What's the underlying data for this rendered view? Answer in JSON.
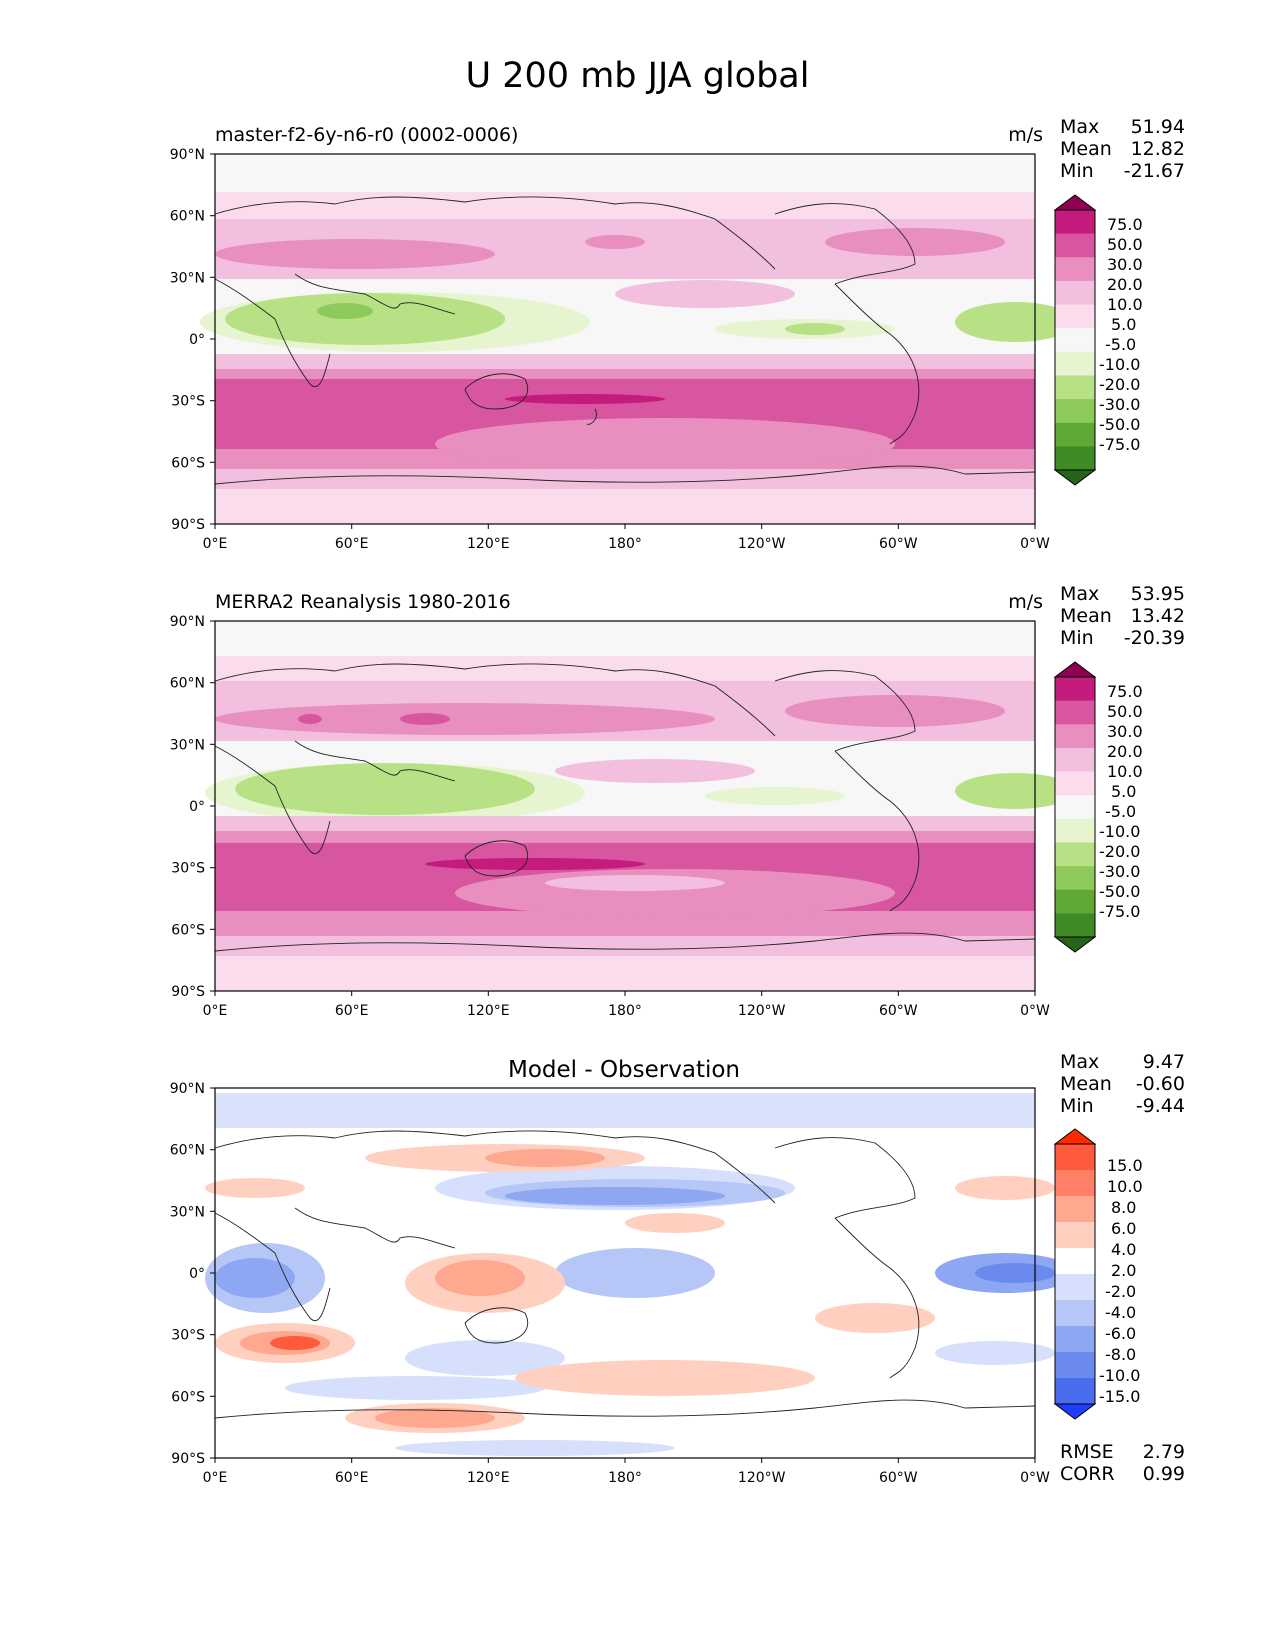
{
  "title": "U 200 mb JJA global",
  "lon_ticks": [
    "0°E",
    "60°E",
    "120°E",
    "180°",
    "120°W",
    "60°W",
    "0°W"
  ],
  "lat_ticks": [
    "90°N",
    "60°N",
    "30°N",
    "0°",
    "30°S",
    "60°S",
    "90°S"
  ],
  "colors": {
    "main_colorbar": [
      "#8e0152",
      "#c51b7d",
      "#d8559f",
      "#e88fbf",
      "#f3bfde",
      "#fadcec",
      "#f7f7f7",
      "#e6f5d0",
      "#b8e186",
      "#8ec95b",
      "#61a936",
      "#3f8a24",
      "#276419"
    ],
    "diff_colorbar": [
      "#ff2a00",
      "#ff5a3c",
      "#ff8066",
      "#ffa890",
      "#ffcfc0",
      "#ffffff",
      "#d6dffb",
      "#b6c6f7",
      "#8ea7f2",
      "#6b8aee",
      "#4a6df0",
      "#1f3cff"
    ]
  },
  "panels": [
    {
      "title": "master-f2-6y-n6-r0 (0002-0006)",
      "units": "m/s",
      "stats": [
        {
          "label": "Max",
          "value": "51.94"
        },
        {
          "label": "Mean",
          "value": "12.82"
        },
        {
          "label": "Min",
          "value": "-21.67"
        }
      ],
      "colorbar_labels": [
        "75.0",
        "50.0",
        "30.0",
        "20.0",
        "10.0",
        "5.0",
        "-5.0",
        "-10.0",
        "-20.0",
        "-30.0",
        "-50.0",
        "-75.0"
      ]
    },
    {
      "title": "MERRA2 Reanalysis 1980-2016",
      "units": "m/s",
      "stats": [
        {
          "label": "Max",
          "value": "53.95"
        },
        {
          "label": "Mean",
          "value": "13.42"
        },
        {
          "label": "Min",
          "value": "-20.39"
        }
      ],
      "colorbar_labels": [
        "75.0",
        "50.0",
        "30.0",
        "20.0",
        "10.0",
        "5.0",
        "-5.0",
        "-10.0",
        "-20.0",
        "-30.0",
        "-50.0",
        "-75.0"
      ]
    },
    {
      "title": "Model - Observation",
      "stats": [
        {
          "label": "Max",
          "value": "9.47"
        },
        {
          "label": "Mean",
          "value": "-0.60"
        },
        {
          "label": "Min",
          "value": "-9.44"
        }
      ],
      "colorbar_labels": [
        "15.0",
        "10.0",
        "8.0",
        "6.0",
        "4.0",
        "2.0",
        "-2.0",
        "-4.0",
        "-6.0",
        "-8.0",
        "-10.0",
        "-15.0"
      ],
      "metrics": [
        {
          "label": "RMSE",
          "value": "2.79"
        },
        {
          "label": "CORR",
          "value": "0.99"
        }
      ]
    }
  ]
}
